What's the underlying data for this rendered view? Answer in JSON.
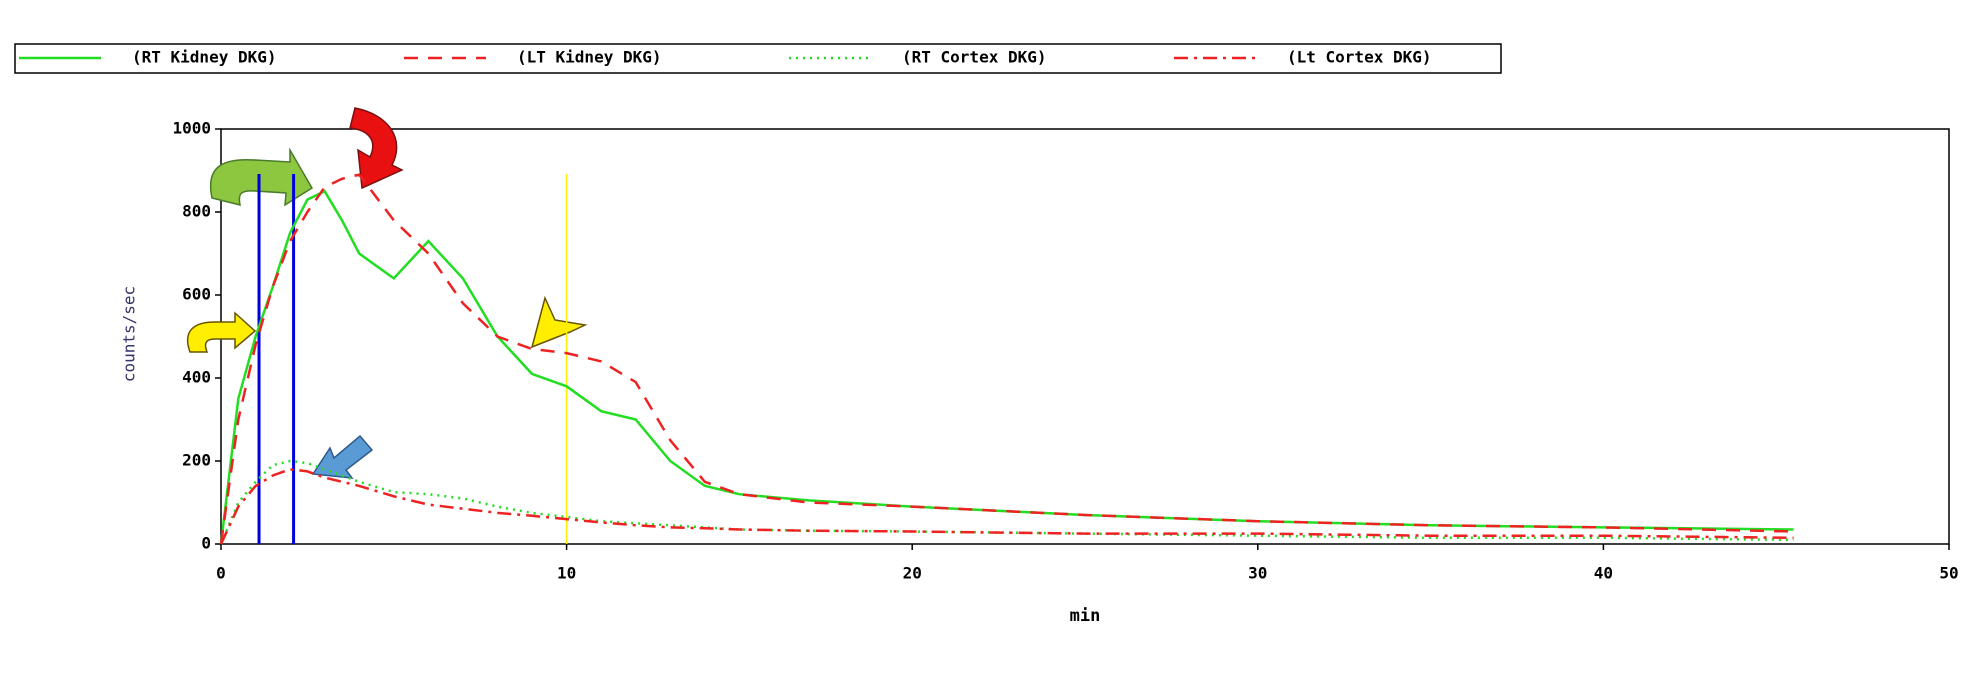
{
  "chart_data": {
    "type": "line",
    "x_label": "min",
    "y_label": "counts/sec",
    "x": [
      0,
      0.5,
      1,
      1.5,
      2,
      2.5,
      3,
      3.5,
      4,
      5,
      6,
      7,
      8,
      9,
      10,
      11,
      12,
      13,
      14,
      15,
      17,
      20,
      25,
      30,
      35,
      40,
      45.5
    ],
    "series": [
      {
        "name": "(RT Kidney DKG)",
        "color": "#22dd22",
        "style": "solid",
        "values": [
          0,
          350,
          500,
          620,
          750,
          830,
          850,
          780,
          700,
          640,
          730,
          640,
          500,
          410,
          380,
          320,
          300,
          200,
          140,
          120,
          105,
          90,
          70,
          55,
          45,
          40,
          35
        ]
      },
      {
        "name": "(LT Kidney DKG)",
        "color": "#ee2222",
        "style": "dashed",
        "values": [
          0,
          300,
          480,
          620,
          730,
          800,
          860,
          880,
          890,
          780,
          700,
          580,
          500,
          470,
          460,
          440,
          390,
          250,
          150,
          120,
          100,
          90,
          70,
          55,
          45,
          40,
          30
        ]
      },
      {
        "name": "(RT Cortex DKG)",
        "color": "#22dd22",
        "style": "dotted",
        "values": [
          0,
          100,
          150,
          190,
          200,
          195,
          180,
          165,
          150,
          125,
          120,
          110,
          90,
          75,
          65,
          55,
          50,
          45,
          40,
          35,
          32,
          30,
          25,
          20,
          15,
          15,
          10
        ]
      },
      {
        "name": "(Lt Cortex DKG)",
        "color": "#ee2222",
        "style": "dashdot",
        "values": [
          0,
          90,
          140,
          165,
          180,
          175,
          160,
          150,
          140,
          115,
          95,
          85,
          75,
          68,
          60,
          52,
          45,
          40,
          38,
          35,
          32,
          30,
          25,
          25,
          20,
          20,
          15
        ]
      }
    ],
    "vlines": [
      {
        "x": 1.1,
        "color": "#0000dd"
      },
      {
        "x": 2.1,
        "color": "#0000dd"
      },
      {
        "x": 10,
        "color": "#ffee00"
      }
    ],
    "xlim": [
      0,
      50
    ],
    "xticks": [
      0,
      10,
      20,
      30,
      40,
      50
    ],
    "ylim": [
      0,
      1000
    ],
    "yticks": [
      0,
      200,
      400,
      600,
      800,
      1000
    ]
  }
}
